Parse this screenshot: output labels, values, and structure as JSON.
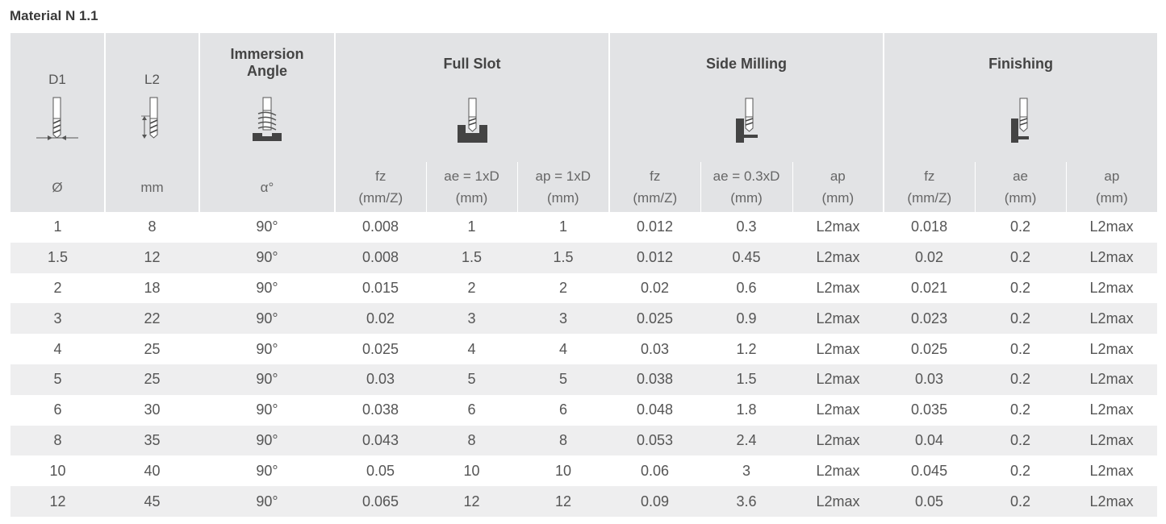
{
  "title": "Material N 1.1",
  "header": {
    "d1": {
      "label": "D1",
      "symbol": "Ø",
      "icon": "tool-diameter-icon"
    },
    "l2": {
      "label": "L2",
      "symbol": "mm",
      "icon": "tool-length-icon"
    },
    "immersion": {
      "label_line1": "Immersion",
      "label_line2": "Angle",
      "symbol": "α°",
      "icon": "helix-immersion-icon"
    },
    "full_slot": {
      "label": "Full Slot",
      "icon": "full-slot-icon",
      "cols": [
        {
          "name": "fz",
          "unit": "(mm/Z)"
        },
        {
          "name": "ae = 1xD",
          "unit": "(mm)"
        },
        {
          "name": "ap = 1xD",
          "unit": "(mm)"
        }
      ]
    },
    "side_milling": {
      "label": "Side Milling",
      "icon": "side-milling-icon",
      "cols": [
        {
          "name": "fz",
          "unit": "(mm/Z)"
        },
        {
          "name": "ae = 0.3xD",
          "unit": "(mm)"
        },
        {
          "name": "ap",
          "unit": "(mm)"
        }
      ]
    },
    "finishing": {
      "label": "Finishing",
      "icon": "finishing-icon",
      "cols": [
        {
          "name": "fz",
          "unit": "(mm/Z)"
        },
        {
          "name": "ae",
          "unit": "(mm)"
        },
        {
          "name": "ap",
          "unit": "(mm)"
        }
      ]
    }
  },
  "rows": [
    [
      "1",
      "8",
      "90°",
      "0.008",
      "1",
      "1",
      "0.012",
      "0.3",
      "L2max",
      "0.018",
      "0.2",
      "L2max"
    ],
    [
      "1.5",
      "12",
      "90°",
      "0.008",
      "1.5",
      "1.5",
      "0.012",
      "0.45",
      "L2max",
      "0.02",
      "0.2",
      "L2max"
    ],
    [
      "2",
      "18",
      "90°",
      "0.015",
      "2",
      "2",
      "0.02",
      "0.6",
      "L2max",
      "0.021",
      "0.2",
      "L2max"
    ],
    [
      "3",
      "22",
      "90°",
      "0.02",
      "3",
      "3",
      "0.025",
      "0.9",
      "L2max",
      "0.023",
      "0.2",
      "L2max"
    ],
    [
      "4",
      "25",
      "90°",
      "0.025",
      "4",
      "4",
      "0.03",
      "1.2",
      "L2max",
      "0.025",
      "0.2",
      "L2max"
    ],
    [
      "5",
      "25",
      "90°",
      "0.03",
      "5",
      "5",
      "0.038",
      "1.5",
      "L2max",
      "0.03",
      "0.2",
      "L2max"
    ],
    [
      "6",
      "30",
      "90°",
      "0.038",
      "6",
      "6",
      "0.048",
      "1.8",
      "L2max",
      "0.035",
      "0.2",
      "L2max"
    ],
    [
      "8",
      "35",
      "90°",
      "0.043",
      "8",
      "8",
      "0.053",
      "2.4",
      "L2max",
      "0.04",
      "0.2",
      "L2max"
    ],
    [
      "10",
      "40",
      "90°",
      "0.05",
      "10",
      "10",
      "0.06",
      "3",
      "L2max",
      "0.045",
      "0.2",
      "L2max"
    ],
    [
      "12",
      "45",
      "90°",
      "0.065",
      "12",
      "12",
      "0.09",
      "3.6",
      "L2max",
      "0.05",
      "0.2",
      "L2max"
    ]
  ],
  "colors": {
    "header_bg": "#e2e3e5",
    "stripe_bg": "#eeeeef",
    "icon_dark": "#3a3a3a"
  }
}
